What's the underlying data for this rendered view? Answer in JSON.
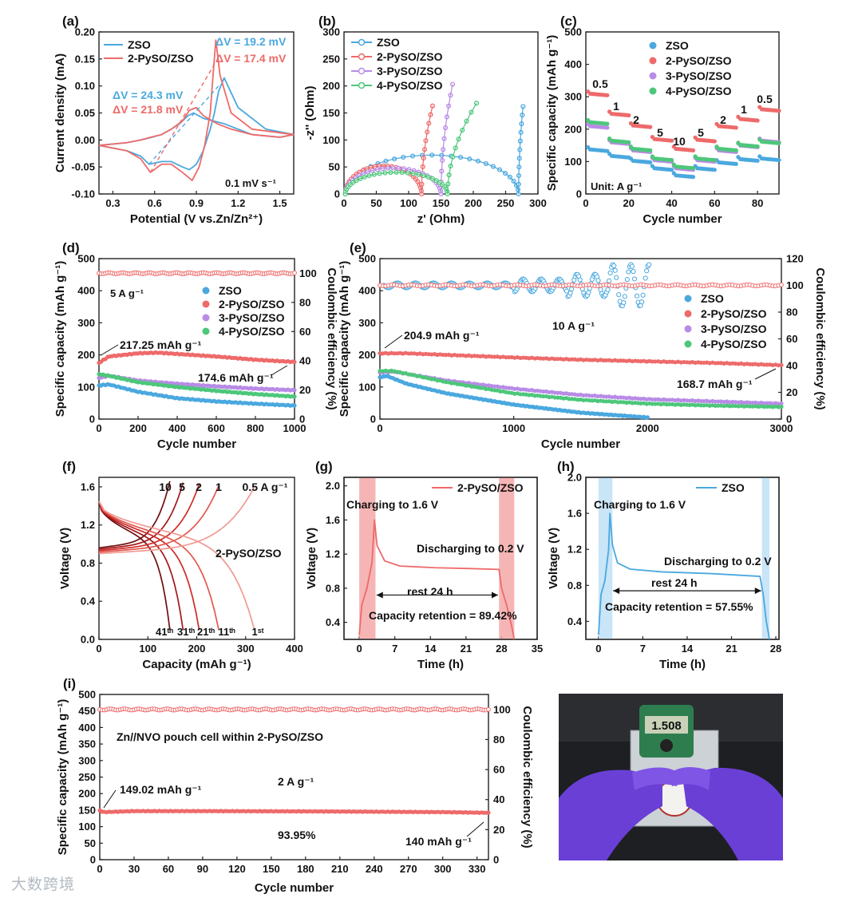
{
  "figure": {
    "watermark": "大数跨境",
    "photo": {
      "description": "Photograph: Zn//NVO pouch cell held in gloved hands connected to a digital multimeter",
      "meter_reading": "1.508"
    }
  },
  "chart_data": [
    {
      "id": "a",
      "panel_label": "(a)",
      "type": "line",
      "title": "",
      "xlabel": "Potential (V vs.Zn/Zn²⁺)",
      "ylabel": "Current density (mA)",
      "xlim": [
        0.2,
        1.6
      ],
      "ylim": [
        -0.1,
        0.2
      ],
      "xticks": [
        "0.3",
        "0.6",
        "0.9",
        "1.2",
        "1.5"
      ],
      "yticks": [
        "-0.10",
        "-0.05",
        "0.00",
        "0.05",
        "0.10",
        "0.15",
        "0.20"
      ],
      "legend": [
        "ZSO",
        "2-PySO/ZSO"
      ],
      "annotations": [
        "ΔV = 19.2 mV",
        "ΔV = 17.4 mV",
        "ΔV = 24.3 mV",
        "ΔV = 21.8 mV",
        "0.1 mV s⁻¹"
      ],
      "series": [
        {
          "name": "ZSO",
          "color": "#4aa8df",
          "x": [
            0.2,
            0.4,
            0.5,
            0.56,
            0.65,
            0.72,
            0.8,
            0.85,
            0.9,
            0.95,
            1.0,
            1.03,
            1.06,
            1.1,
            1.2,
            1.4,
            1.6,
            1.5,
            1.3,
            1.2,
            1.1,
            0.95,
            0.88,
            0.84,
            0.78,
            0.72,
            0.65,
            0.58,
            0.5,
            0.4,
            0.2
          ],
          "y": [
            -0.01,
            -0.02,
            -0.03,
            -0.045,
            -0.04,
            -0.04,
            -0.05,
            -0.055,
            -0.045,
            -0.02,
            0.02,
            0.05,
            0.09,
            0.115,
            0.06,
            0.02,
            0.01,
            0.005,
            0.01,
            0.02,
            0.03,
            0.04,
            0.05,
            0.045,
            0.03,
            0.02,
            0.01,
            0.005,
            0.0,
            -0.005,
            -0.01
          ]
        },
        {
          "name": "2-PySO/ZSO",
          "color": "#ee6a6a",
          "x": [
            0.2,
            0.4,
            0.5,
            0.57,
            0.65,
            0.72,
            0.8,
            0.87,
            0.92,
            0.96,
            1.0,
            1.02,
            1.04,
            1.07,
            1.15,
            1.3,
            1.6,
            1.5,
            1.3,
            1.15,
            1.05,
            0.95,
            0.9,
            0.85,
            0.8,
            0.72,
            0.65,
            0.57,
            0.5,
            0.4,
            0.2
          ],
          "y": [
            -0.01,
            -0.02,
            -0.035,
            -0.06,
            -0.045,
            -0.045,
            -0.06,
            -0.075,
            -0.05,
            -0.01,
            0.05,
            0.12,
            0.185,
            0.12,
            0.05,
            0.02,
            0.01,
            0.005,
            0.01,
            0.02,
            0.03,
            0.045,
            0.06,
            0.055,
            0.035,
            0.02,
            0.01,
            0.005,
            0.0,
            -0.005,
            -0.01
          ]
        }
      ]
    },
    {
      "id": "b",
      "panel_label": "(b)",
      "type": "scatter",
      "xlabel": "z' (Ohm)",
      "ylabel": "-z'' (Ohm)",
      "xlim": [
        0,
        300
      ],
      "ylim": [
        0,
        300
      ],
      "xticks": [
        "0",
        "50",
        "100",
        "150",
        "200",
        "250",
        "300"
      ],
      "yticks": [
        "0",
        "50",
        "100",
        "150",
        "200",
        "250",
        "300"
      ],
      "legend": [
        "ZSO",
        "2-PySO/ZSO",
        "3-PySO/ZSO",
        "4-PySO/ZSO"
      ],
      "series": [
        {
          "name": "ZSO",
          "color": "#4aa8df",
          "arc": [
            2,
            270
          ],
          "tail_x": [
            270,
            277
          ],
          "tail_top": 162
        },
        {
          "name": "2-PySO/ZSO",
          "color": "#ee6a6a",
          "arc": [
            2,
            120
          ],
          "tail_x": [
            120,
            137
          ],
          "tail_top": 163
        },
        {
          "name": "3-PySO/ZSO",
          "color": "#b88be6",
          "arc": [
            2,
            150
          ],
          "tail_x": [
            150,
            168
          ],
          "tail_top": 203
        },
        {
          "name": "4-PySO/ZSO",
          "color": "#4dc77a",
          "arc": [
            2,
            160
          ],
          "tail_x": [
            160,
            205
          ],
          "tail_top": 168
        }
      ]
    },
    {
      "id": "c",
      "panel_label": "(c)",
      "type": "scatter",
      "xlabel": "Cycle number",
      "ylabel": "Specific capacity (mAh g⁻¹)",
      "xlim": [
        0,
        90
      ],
      "ylim": [
        0,
        500
      ],
      "xticks": [
        "0",
        "20",
        "40",
        "60",
        "80"
      ],
      "yticks": [
        "0",
        "100",
        "200",
        "300",
        "400",
        "500"
      ],
      "legend": [
        "ZSO",
        "2-PySO/ZSO",
        "3-PySO/ZSO",
        "4-PySO/ZSO"
      ],
      "rate_labels": [
        "0.5",
        "1",
        "2",
        "5",
        "10",
        "5",
        "2",
        "1",
        "0.5"
      ],
      "unit_note": "Unit: A g⁻¹",
      "series": [
        {
          "name": "ZSO",
          "color": "#4aa8df",
          "step_values": [
            138,
            118,
            103,
            80,
            58,
            80,
            98,
            108,
            110
          ]
        },
        {
          "name": "2-PySO/ZSO",
          "color": "#ee6a6a",
          "step_values": [
            310,
            248,
            212,
            170,
            140,
            168,
            210,
            232,
            262
          ]
        },
        {
          "name": "3-PySO/ZSO",
          "color": "#b88be6",
          "step_values": [
            210,
            160,
            135,
            105,
            80,
            105,
            135,
            150,
            165
          ]
        },
        {
          "name": "4-PySO/ZSO",
          "color": "#4dc77a",
          "step_values": [
            222,
            165,
            140,
            110,
            85,
            110,
            140,
            152,
            162
          ]
        }
      ]
    },
    {
      "id": "d",
      "panel_label": "(d)",
      "type": "scatter",
      "xlabel": "Cycle number",
      "ylabel": "Specific capacity (mAh g⁻¹)",
      "y2label": "Coulombic efficiency (%)",
      "xlim": [
        0,
        1000
      ],
      "ylim": [
        0,
        500
      ],
      "y2lim": [
        0,
        110
      ],
      "xticks": [
        "0",
        "200",
        "400",
        "600",
        "800",
        "1000"
      ],
      "yticks": [
        "0",
        "100",
        "200",
        "300",
        "400",
        "500"
      ],
      "y2ticks": [
        "0",
        "20",
        "40",
        "60",
        "80",
        "100"
      ],
      "legend": [
        "ZSO",
        "2-PySO/ZSO",
        "3-PySO/ZSO",
        "4-PySO/ZSO"
      ],
      "annotations": [
        "5 A g⁻¹",
        "217.25 mAh g⁻¹",
        "174.6 mAh g⁻¹"
      ],
      "series": [
        {
          "name": "ZSO",
          "color": "#4aa8df",
          "x": [
            0,
            50,
            200,
            400,
            600,
            800,
            1000
          ],
          "y": [
            105,
            108,
            85,
            65,
            55,
            48,
            42
          ]
        },
        {
          "name": "2-PySO/ZSO",
          "color": "#ee6a6a",
          "x": [
            0,
            50,
            200,
            300,
            400,
            600,
            800,
            1000
          ],
          "y": [
            175,
            195,
            205,
            207,
            203,
            195,
            185,
            178
          ]
        },
        {
          "name": "3-PySO/ZSO",
          "color": "#b88be6",
          "x": [
            0,
            50,
            200,
            400,
            600,
            800,
            1000
          ],
          "y": [
            128,
            135,
            120,
            110,
            102,
            95,
            90
          ]
        },
        {
          "name": "4-PySO/ZSO",
          "color": "#4dc77a",
          "x": [
            0,
            50,
            200,
            400,
            600,
            800,
            1000
          ],
          "y": [
            140,
            135,
            115,
            100,
            88,
            78,
            70
          ]
        }
      ],
      "ce_percent": 100
    },
    {
      "id": "e",
      "panel_label": "(e)",
      "type": "scatter",
      "xlabel": "Cycle number",
      "ylabel": "Specific capacity (mAh g⁻¹)",
      "y2label": "Coulombic efficiency (%)",
      "xlim": [
        0,
        3000
      ],
      "ylim": [
        0,
        500
      ],
      "y2lim": [
        0,
        120
      ],
      "xticks": [
        "0",
        "1000",
        "2000",
        "3000"
      ],
      "yticks": [
        "0",
        "100",
        "200",
        "300",
        "400",
        "500"
      ],
      "y2ticks": [
        "0",
        "20",
        "40",
        "60",
        "80",
        "100",
        "120"
      ],
      "legend": [
        "ZSO",
        "2-PySO/ZSO",
        "3-PySO/ZSO",
        "4-PySO/ZSO"
      ],
      "annotations": [
        "10 A g⁻¹",
        "204.9 mAh g⁻¹",
        "168.7 mAh g⁻¹"
      ],
      "series": [
        {
          "name": "ZSO",
          "color": "#4aa8df",
          "x": [
            0,
            50,
            200,
            500,
            1000,
            1500,
            2000
          ],
          "y": [
            130,
            135,
            110,
            80,
            45,
            20,
            5
          ]
        },
        {
          "name": "2-PySO/ZSO",
          "color": "#ee6a6a",
          "x": [
            0,
            200,
            500,
            1000,
            1500,
            2000,
            2500,
            3000
          ],
          "y": [
            205,
            205,
            200,
            192,
            185,
            180,
            175,
            168
          ]
        },
        {
          "name": "3-PySO/ZSO",
          "color": "#b88be6",
          "x": [
            0,
            100,
            500,
            1000,
            1500,
            2000,
            2500,
            3000
          ],
          "y": [
            145,
            148,
            120,
            95,
            75,
            62,
            55,
            48
          ]
        },
        {
          "name": "4-PySO/ZSO",
          "color": "#4dc77a",
          "x": [
            0,
            100,
            500,
            1000,
            1500,
            2000,
            2500,
            3000
          ],
          "y": [
            150,
            150,
            115,
            80,
            60,
            48,
            42,
            38
          ]
        }
      ],
      "ce_percent": 100
    },
    {
      "id": "f",
      "panel_label": "(f)",
      "type": "line",
      "xlabel": "Capacity (mAh g⁻¹)",
      "ylabel": "Voltage (V)",
      "xlim": [
        0,
        400
      ],
      "ylim": [
        0,
        1.7
      ],
      "xticks": [
        "0",
        "100",
        "200",
        "300",
        "400"
      ],
      "yticks": [
        "0.0",
        "0.4",
        "0.8",
        "1.2",
        "1.6"
      ],
      "rate_labels": [
        "10",
        "5",
        "2",
        "1",
        "0.5 A g⁻¹"
      ],
      "cycle_labels": [
        "41ᵗʰ",
        "31ᵗʰ",
        "21ᵗʰ",
        "11ᵗʰ",
        "1ˢᵗ"
      ],
      "annotation": "2-PySO/ZSO",
      "capacities": [
        145,
        172,
        205,
        245,
        318
      ],
      "colors": [
        "#6e0f0f",
        "#a3171a",
        "#cf2a26",
        "#e2584f",
        "#f09a92"
      ]
    },
    {
      "id": "g",
      "panel_label": "(g)",
      "type": "line",
      "xlabel": "Time (h)",
      "ylabel": "Voltage (V)",
      "xlim": [
        -3,
        35
      ],
      "ylim": [
        0.2,
        2.1
      ],
      "xticks": [
        "0",
        "7",
        "14",
        "21",
        "28",
        "35"
      ],
      "yticks": [
        "0.4",
        "0.8",
        "1.2",
        "1.6",
        "2.0"
      ],
      "legend": [
        "2-PySO/ZSO"
      ],
      "annotations": [
        "Charging to 1.6 V",
        "Discharging to 0.2 V",
        "rest 24 h",
        "Capacity retention = 89.42%"
      ],
      "series": [
        {
          "name": "2-PySO/ZSO",
          "color": "#ee6a6a",
          "x": [
            0,
            0.5,
            1.5,
            2.5,
            3,
            3.5,
            5,
            8,
            15,
            22,
            27.5,
            28,
            29,
            30,
            30.5
          ],
          "y": [
            0.25,
            0.6,
            0.8,
            1.1,
            1.6,
            1.3,
            1.12,
            1.06,
            1.04,
            1.03,
            1.02,
            0.8,
            0.6,
            0.35,
            0.2
          ]
        }
      ]
    },
    {
      "id": "h",
      "panel_label": "(h)",
      "type": "line",
      "xlabel": "Time (h)",
      "ylabel": "Voltage (V)",
      "xlim": [
        -2,
        28.5
      ],
      "ylim": [
        0.2,
        2.0
      ],
      "xticks": [
        "0",
        "7",
        "14",
        "21",
        "28"
      ],
      "yticks": [
        "0.4",
        "0.8",
        "1.2",
        "1.6",
        "2.0"
      ],
      "legend": [
        "ZSO"
      ],
      "annotations": [
        "Charging to 1.6 V",
        "Discharging to 0.2 V",
        "rest 24 h",
        "Capacity retention = 57.55%"
      ],
      "series": [
        {
          "name": "ZSO",
          "color": "#4aa8df",
          "x": [
            0,
            0.4,
            1,
            1.6,
            1.8,
            2.2,
            3,
            5,
            10,
            18,
            25.5,
            26,
            26.5,
            27
          ],
          "y": [
            0.25,
            0.7,
            0.85,
            1.2,
            1.6,
            1.25,
            1.05,
            0.98,
            0.95,
            0.93,
            0.9,
            0.7,
            0.4,
            0.2
          ]
        }
      ]
    },
    {
      "id": "i",
      "panel_label": "(i)",
      "type": "scatter",
      "xlabel": "Cycle number",
      "ylabel": "Specific capacity (mAh g⁻¹)",
      "y2label": "Coulombic efficiency (%)",
      "xlim": [
        0,
        340
      ],
      "ylim": [
        0,
        500
      ],
      "y2lim": [
        0,
        110
      ],
      "xticks": [
        "0",
        "30",
        "60",
        "90",
        "120",
        "150",
        "180",
        "210",
        "240",
        "270",
        "300",
        "330"
      ],
      "yticks": [
        "0",
        "50",
        "100",
        "150",
        "200",
        "250",
        "300",
        "350",
        "400",
        "450",
        "500"
      ],
      "y2ticks": [
        "0",
        "20",
        "40",
        "60",
        "80",
        "100"
      ],
      "annotations": [
        "Zn//NVO pouch cell within 2-PySO/ZSO",
        "2 A g⁻¹",
        "149.02 mAh g⁻¹",
        "93.95%",
        "140 mAh g⁻¹"
      ],
      "series": [
        {
          "name": "2-PySO/ZSO",
          "color": "#ee6a6a",
          "x": [
            0,
            3,
            30,
            100,
            200,
            300,
            340
          ],
          "y": [
            149,
            144,
            147,
            147,
            146,
            144,
            142
          ]
        }
      ],
      "ce_percent": 100
    }
  ]
}
